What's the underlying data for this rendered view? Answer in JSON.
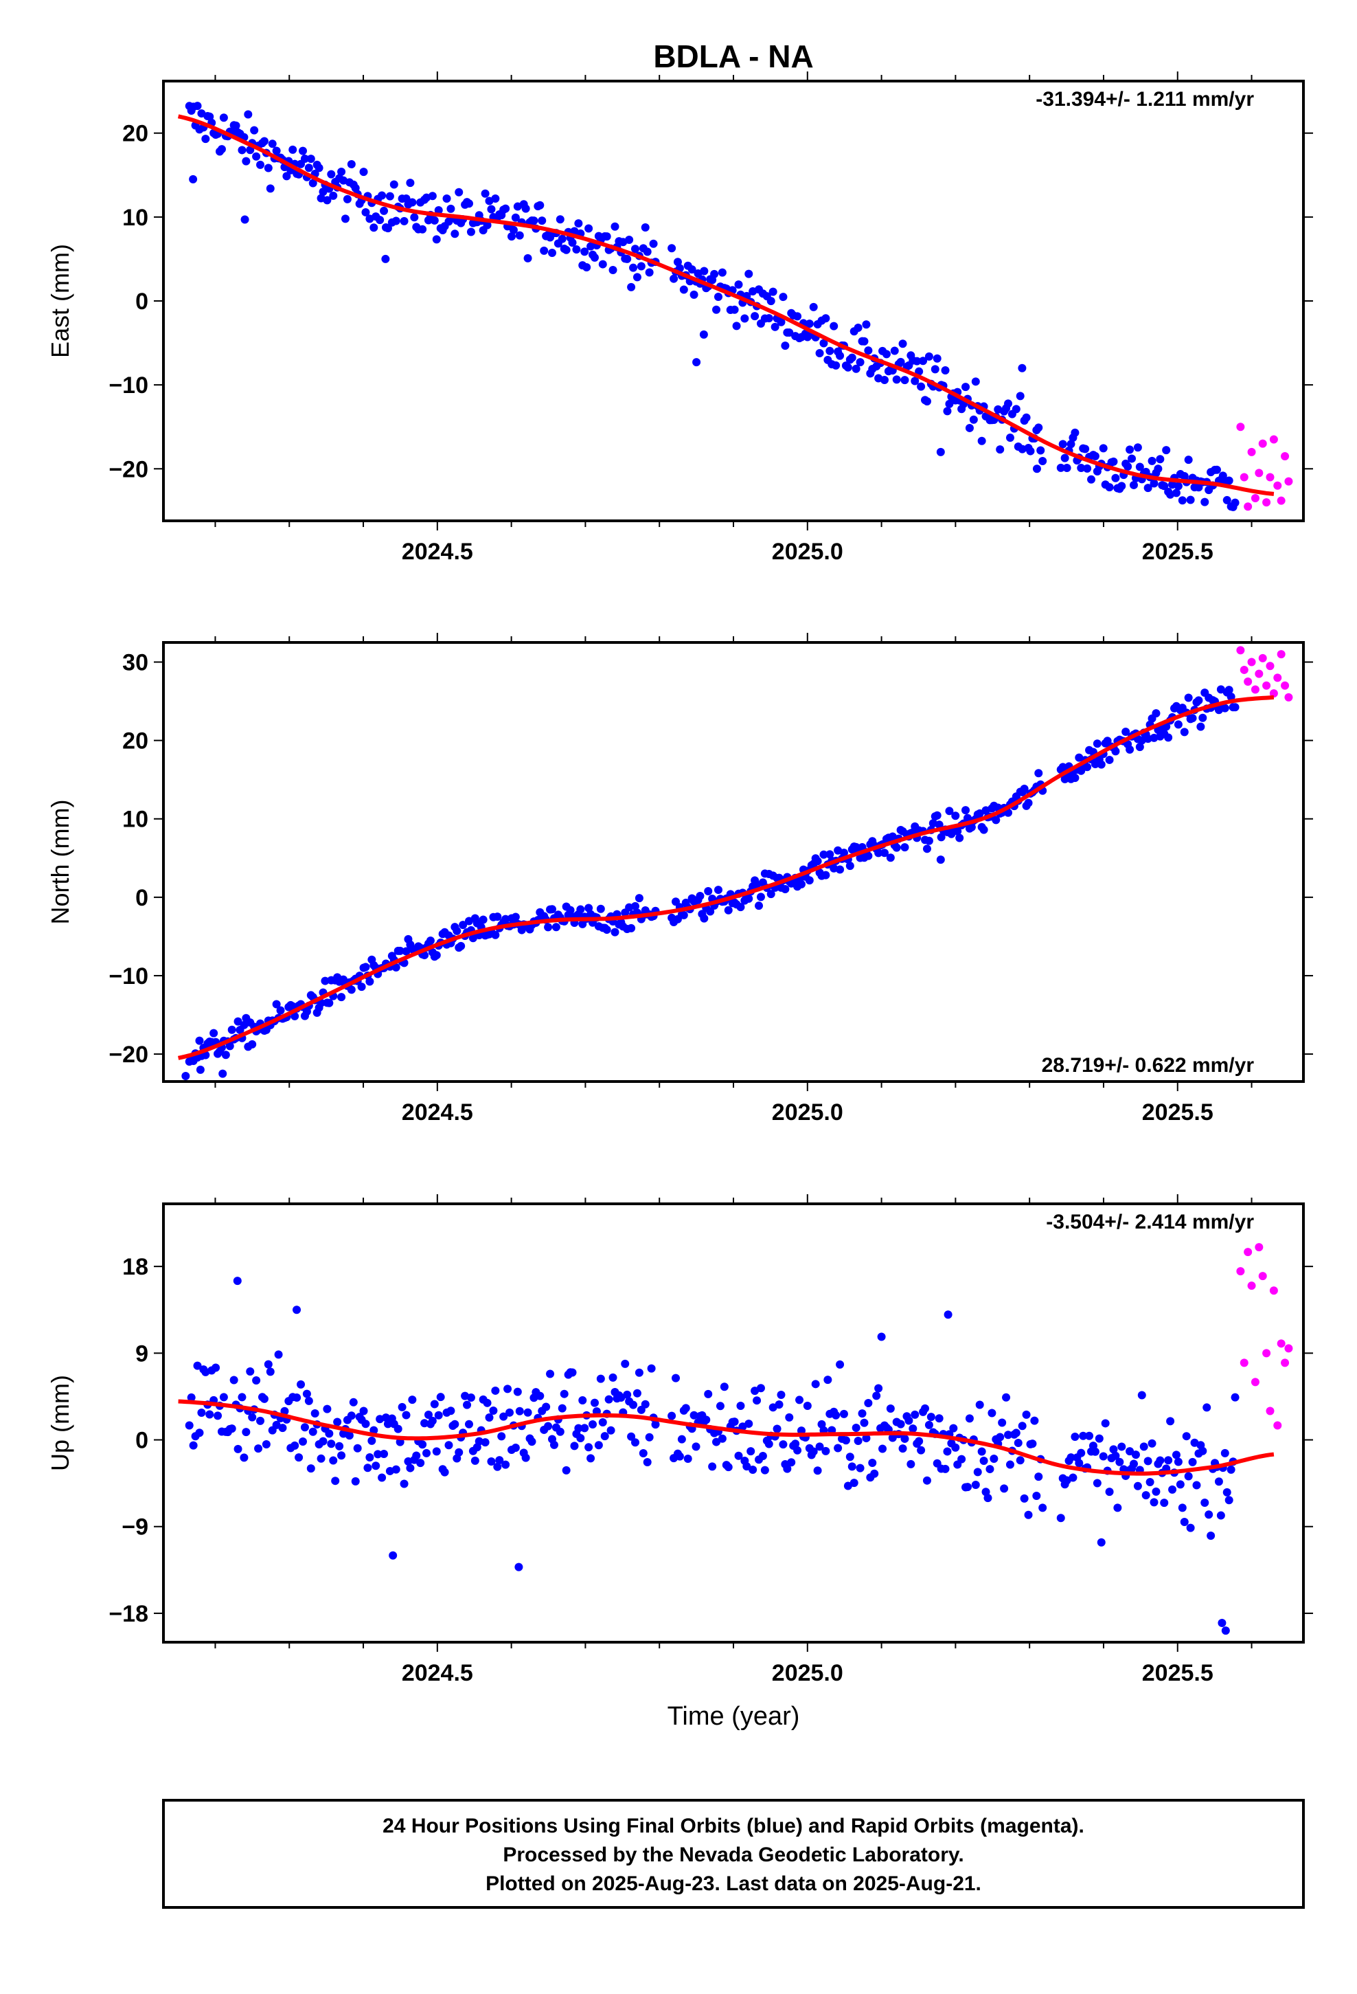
{
  "chart_data": {
    "title": "BDLA - NA",
    "xlabel": "Time (year)",
    "xlim": [
      2024.13,
      2025.67
    ],
    "xticks": [
      2024.5,
      2025.0,
      2025.5
    ],
    "xtick_labels": [
      "2024.5",
      "2025.0",
      "2025.5"
    ],
    "colors": {
      "final": "#0000ff",
      "rapid": "#ff00ff",
      "model": "#ff0000"
    },
    "panels": [
      {
        "type": "scatter",
        "ylabel": "East (mm)",
        "ylim": [
          -26.2,
          26.2
        ],
        "yticks": [
          -20,
          -10,
          0,
          10,
          20
        ],
        "ytick_labels": [
          "−20",
          "−10",
          "0",
          "10",
          "20"
        ],
        "rate_label": "-31.394+/- 1.211 mm/yr",
        "rate_position": "top-right",
        "model": {
          "x": [
            2024.15,
            2024.25,
            2024.35,
            2024.45,
            2024.55,
            2024.65,
            2024.75,
            2024.85,
            2024.95,
            2025.05,
            2025.15,
            2025.25,
            2025.35,
            2025.45,
            2025.55,
            2025.63
          ],
          "y": [
            22,
            18.5,
            14,
            11,
            9.8,
            8.5,
            6,
            2.5,
            -1.2,
            -5.5,
            -9,
            -13.5,
            -18,
            -20.8,
            -21.8,
            -23
          ]
        },
        "final_scatter": 2.2,
        "final_outliers": [
          [
            2024.17,
            14.5
          ],
          [
            2024.24,
            9.7
          ],
          [
            2024.43,
            5.0
          ],
          [
            2024.85,
            -7.3
          ],
          [
            2024.86,
            -4.0
          ],
          [
            2025.18,
            -18
          ],
          [
            2025.29,
            -8
          ],
          [
            2025.31,
            -20
          ]
        ],
        "rapid_points": [
          [
            2025.585,
            -15
          ],
          [
            2025.59,
            -21
          ],
          [
            2025.595,
            -24.5
          ],
          [
            2025.6,
            -18
          ],
          [
            2025.605,
            -23.5
          ],
          [
            2025.61,
            -20.5
          ],
          [
            2025.615,
            -17
          ],
          [
            2025.62,
            -24
          ],
          [
            2025.625,
            -21
          ],
          [
            2025.63,
            -16.5
          ],
          [
            2025.635,
            -22
          ],
          [
            2025.64,
            -23.8
          ],
          [
            2025.645,
            -18.5
          ],
          [
            2025.65,
            -21.5
          ]
        ]
      },
      {
        "type": "scatter",
        "ylabel": "North (mm)",
        "ylim": [
          -23.5,
          32.5
        ],
        "yticks": [
          -20,
          -10,
          0,
          10,
          20,
          30
        ],
        "ytick_labels": [
          "−20",
          "−10",
          "0",
          "10",
          "20",
          "30"
        ],
        "rate_label": "28.719+/- 0.622 mm/yr",
        "rate_position": "bottom-right",
        "model": {
          "x": [
            2024.15,
            2024.25,
            2024.35,
            2024.45,
            2024.55,
            2024.65,
            2024.75,
            2024.85,
            2024.95,
            2025.05,
            2025.15,
            2025.25,
            2025.35,
            2025.45,
            2025.55,
            2025.63
          ],
          "y": [
            -20.5,
            -17,
            -12.5,
            -8,
            -4.5,
            -3,
            -2.6,
            -1.2,
            1.5,
            5,
            8,
            10.5,
            16,
            21,
            24.5,
            25.5
          ]
        },
        "final_scatter": 1.3,
        "final_outliers": [
          [
            2024.16,
            -22.8
          ],
          [
            2024.18,
            -22
          ],
          [
            2024.21,
            -22.5
          ],
          [
            2025.18,
            4.8
          ]
        ],
        "rapid_points": [
          [
            2025.585,
            31.5
          ],
          [
            2025.59,
            29
          ],
          [
            2025.595,
            27.5
          ],
          [
            2025.6,
            30
          ],
          [
            2025.605,
            26.5
          ],
          [
            2025.61,
            28.5
          ],
          [
            2025.615,
            30.5
          ],
          [
            2025.62,
            27
          ],
          [
            2025.625,
            29.5
          ],
          [
            2025.63,
            26
          ],
          [
            2025.635,
            28
          ],
          [
            2025.64,
            31
          ],
          [
            2025.645,
            27
          ],
          [
            2025.65,
            25.5
          ]
        ]
      },
      {
        "type": "scatter",
        "ylabel": "Up (mm)",
        "ylim": [
          -21,
          24.5
        ],
        "yticks": [
          -18,
          -9,
          0,
          9,
          18
        ],
        "ytick_labels": [
          "−18",
          "−9",
          "0",
          "9",
          "18"
        ],
        "rate_label": "-3.504+/- 2.414 mm/yr",
        "rate_position": "top-right",
        "model": {
          "x": [
            2024.15,
            2024.25,
            2024.35,
            2024.45,
            2024.55,
            2024.65,
            2024.75,
            2024.85,
            2024.95,
            2025.05,
            2025.15,
            2025.25,
            2025.35,
            2025.45,
            2025.55,
            2025.63
          ],
          "y": [
            4,
            3.2,
            1.5,
            0.2,
            0.6,
            2.2,
            2.5,
            1.5,
            0.6,
            0.6,
            0.6,
            -0.6,
            -2.8,
            -3.5,
            -2.8,
            -1.5
          ]
        },
        "final_scatter": 4.0,
        "final_outliers": [
          [
            2024.23,
            16.5
          ],
          [
            2024.31,
            13.5
          ],
          [
            2024.44,
            -12
          ],
          [
            2024.61,
            -13.2
          ],
          [
            2025.1,
            10.7
          ],
          [
            2025.19,
            13
          ],
          [
            2025.56,
            -19
          ],
          [
            2025.565,
            -19.8
          ]
        ],
        "rapid_points": [
          [
            2025.585,
            17.5
          ],
          [
            2025.59,
            8
          ],
          [
            2025.595,
            19.5
          ],
          [
            2025.6,
            16
          ],
          [
            2025.605,
            6
          ],
          [
            2025.61,
            20
          ],
          [
            2025.615,
            17
          ],
          [
            2025.62,
            9
          ],
          [
            2025.625,
            3
          ],
          [
            2025.63,
            15.5
          ],
          [
            2025.635,
            1.5
          ],
          [
            2025.64,
            10
          ],
          [
            2025.645,
            8
          ],
          [
            2025.65,
            9.5
          ]
        ]
      }
    ]
  },
  "footer": {
    "line1": "24 Hour Positions Using Final Orbits (blue) and Rapid Orbits (magenta).",
    "line2": "Processed by the Nevada Geodetic Laboratory.",
    "line3": "Plotted on 2025-Aug-23. Last data on 2025-Aug-21."
  }
}
